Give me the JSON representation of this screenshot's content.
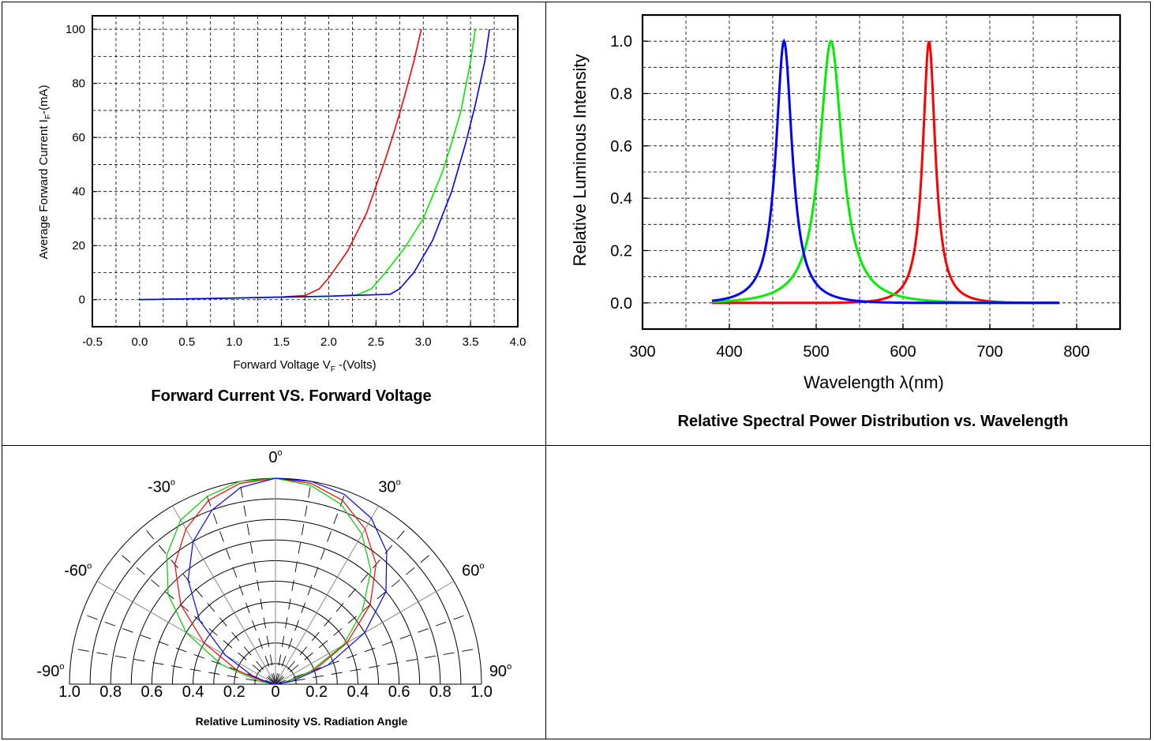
{
  "chart_data": [
    {
      "type": "line",
      "title": "Forward Current VS. Forward Voltage",
      "xlabel": "Forward Voltage V",
      "xlabel_sub": "F",
      "xlabel_tail": " -(Volts)",
      "ylabel": "Average Forward Current I",
      "ylabel_sub": "F",
      "ylabel_tail": "-(mA)",
      "xlim": [
        -0.5,
        4.0
      ],
      "ylim": [
        -10,
        105
      ],
      "xticks": [
        -0.5,
        0.0,
        0.5,
        1.0,
        1.5,
        2.0,
        2.5,
        3.0,
        3.5,
        4.0
      ],
      "xtick_labels": [
        "-0.5",
        "0.0",
        "0.5",
        "1.0",
        "1.5",
        "2.0",
        "2.5",
        "3.0",
        "3.5",
        "4.0"
      ],
      "yticks": [
        0,
        20,
        40,
        60,
        80,
        100
      ],
      "ytick_labels": [
        "0",
        "20",
        "40",
        "60",
        "80",
        "100"
      ],
      "grid": true,
      "series": [
        {
          "color": "#ff0000",
          "x": [
            0,
            1.0,
            1.5,
            1.75,
            1.9,
            2.0,
            2.2,
            2.4,
            2.6,
            2.7,
            2.8,
            2.9,
            2.98
          ],
          "y": [
            0,
            0.6,
            1.0,
            1.5,
            4,
            8,
            18,
            32,
            52,
            63,
            75,
            88,
            100
          ]
        },
        {
          "color": "#00ee00",
          "x": [
            0,
            1.0,
            2.0,
            2.3,
            2.45,
            2.6,
            2.8,
            3.0,
            3.2,
            3.3,
            3.4,
            3.5,
            3.55
          ],
          "y": [
            0,
            0.6,
            1.2,
            1.8,
            4,
            10,
            19,
            30,
            47,
            58,
            70,
            88,
            100
          ]
        },
        {
          "color": "#0000ff",
          "x": [
            0,
            1.0,
            2.0,
            2.65,
            2.75,
            2.9,
            3.1,
            3.3,
            3.45,
            3.55,
            3.65,
            3.7
          ],
          "y": [
            0,
            0.6,
            1.3,
            2.0,
            4,
            10,
            22,
            40,
            58,
            72,
            88,
            100
          ]
        }
      ]
    },
    {
      "type": "line",
      "title": "Relative Spectral Power Distribution vs. Wavelength",
      "xlabel": "Wavelength λ(nm)",
      "ylabel": "Relative Luminous Intensity",
      "xlim": [
        300,
        850
      ],
      "ylim": [
        -0.1,
        1.1
      ],
      "xticks": [
        300,
        400,
        500,
        600,
        700,
        800
      ],
      "xtick_labels": [
        "300",
        "400",
        "500",
        "600",
        "700",
        "800"
      ],
      "yticks": [
        0.0,
        0.2,
        0.4,
        0.6,
        0.8,
        1.0
      ],
      "ytick_labels": [
        "0.0",
        "0.2",
        "0.4",
        "0.6",
        "0.8",
        "1.0"
      ],
      "grid": true,
      "series": [
        {
          "color": "#ff0000",
          "peak": 630,
          "halfwidth": 10,
          "x_range": [
            380,
            780
          ]
        },
        {
          "color": "#00ee00",
          "peak": 517,
          "halfwidth": 18,
          "x_range": [
            380,
            780
          ]
        },
        {
          "color": "#0000ff",
          "peak": 463,
          "halfwidth": 13,
          "x_range": [
            380,
            780
          ]
        }
      ]
    },
    {
      "type": "polar",
      "title": "Relative Luminosity VS. Radiation Angle",
      "angle_labels": [
        {
          "angle": 0,
          "text": "0",
          "sup": "o"
        },
        {
          "angle": -30,
          "text": "-30",
          "sup": "o"
        },
        {
          "angle": 30,
          "text": "30",
          "sup": "o"
        },
        {
          "angle": -60,
          "text": "-60",
          "sup": "o"
        },
        {
          "angle": 60,
          "text": "60",
          "sup": "o"
        },
        {
          "angle": -90,
          "text": "-90",
          "sup": "o"
        },
        {
          "angle": 90,
          "text": "90",
          "sup": "o"
        }
      ],
      "radial_labels": [
        "1.0",
        "0.8",
        "0.6",
        "0.4",
        "0.2",
        "0",
        "0.2",
        "0.4",
        "0.6",
        "0.8",
        "1.0"
      ],
      "series": [
        {
          "color": "#ff0000",
          "angles": [
            -90,
            -80,
            -70,
            -60,
            -50,
            -40,
            -30,
            -20,
            -10,
            0,
            10,
            20,
            30,
            40,
            50,
            60,
            70,
            80,
            90
          ],
          "values": [
            0,
            0.05,
            0.2,
            0.4,
            0.6,
            0.76,
            0.87,
            0.95,
            0.99,
            1.0,
            0.99,
            0.95,
            0.87,
            0.76,
            0.6,
            0.4,
            0.2,
            0.05,
            0
          ]
        },
        {
          "color": "#00cc00",
          "angles": [
            -90,
            -80,
            -70,
            -60,
            -50,
            -40,
            -30,
            -20,
            -10,
            0,
            10,
            20,
            30,
            40,
            50,
            60,
            70,
            80,
            90
          ],
          "values": [
            0,
            0.08,
            0.28,
            0.5,
            0.68,
            0.82,
            0.92,
            0.97,
            1.0,
            1.0,
            0.98,
            0.93,
            0.84,
            0.72,
            0.55,
            0.38,
            0.18,
            0.04,
            0
          ]
        },
        {
          "color": "#0000ff",
          "angles": [
            -90,
            -80,
            -70,
            -60,
            -50,
            -40,
            -30,
            -20,
            -10,
            0,
            10,
            20,
            30,
            40,
            50,
            60,
            70,
            80,
            90
          ],
          "values": [
            0,
            0.03,
            0.12,
            0.28,
            0.48,
            0.66,
            0.8,
            0.9,
            0.97,
            1.0,
            1.0,
            0.98,
            0.93,
            0.84,
            0.7,
            0.5,
            0.27,
            0.08,
            0
          ]
        }
      ]
    }
  ]
}
